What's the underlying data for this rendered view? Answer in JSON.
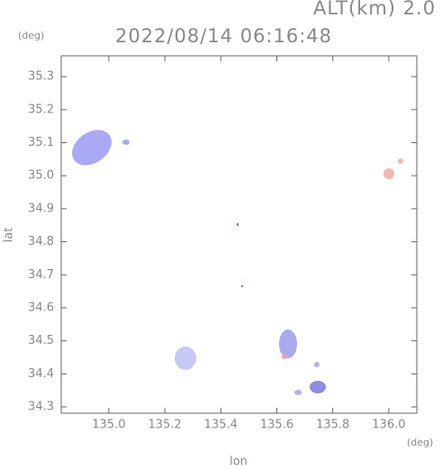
{
  "chart_data": {
    "type": "map",
    "title": "2022/08/14 06:16:48",
    "subtitle": "ALT(km) 2.0",
    "x_label": "lon",
    "y_label": "lat",
    "x_unit": "(deg)",
    "y_unit": "(deg)",
    "xlim": [
      134.83,
      136.1
    ],
    "ylim": [
      34.281,
      35.363
    ],
    "xticks": [
      {
        "value": 135,
        "label": "135.0"
      },
      135.2,
      135.4,
      135.6,
      135.8,
      {
        "value": 136,
        "label": "136.0"
      }
    ],
    "yticks": [
      34.3,
      34.4,
      34.5,
      34.6,
      34.7,
      34.8,
      34.9,
      {
        "value": 35,
        "label": "35.0"
      },
      35.1,
      35.2,
      35.3
    ]
  }
}
